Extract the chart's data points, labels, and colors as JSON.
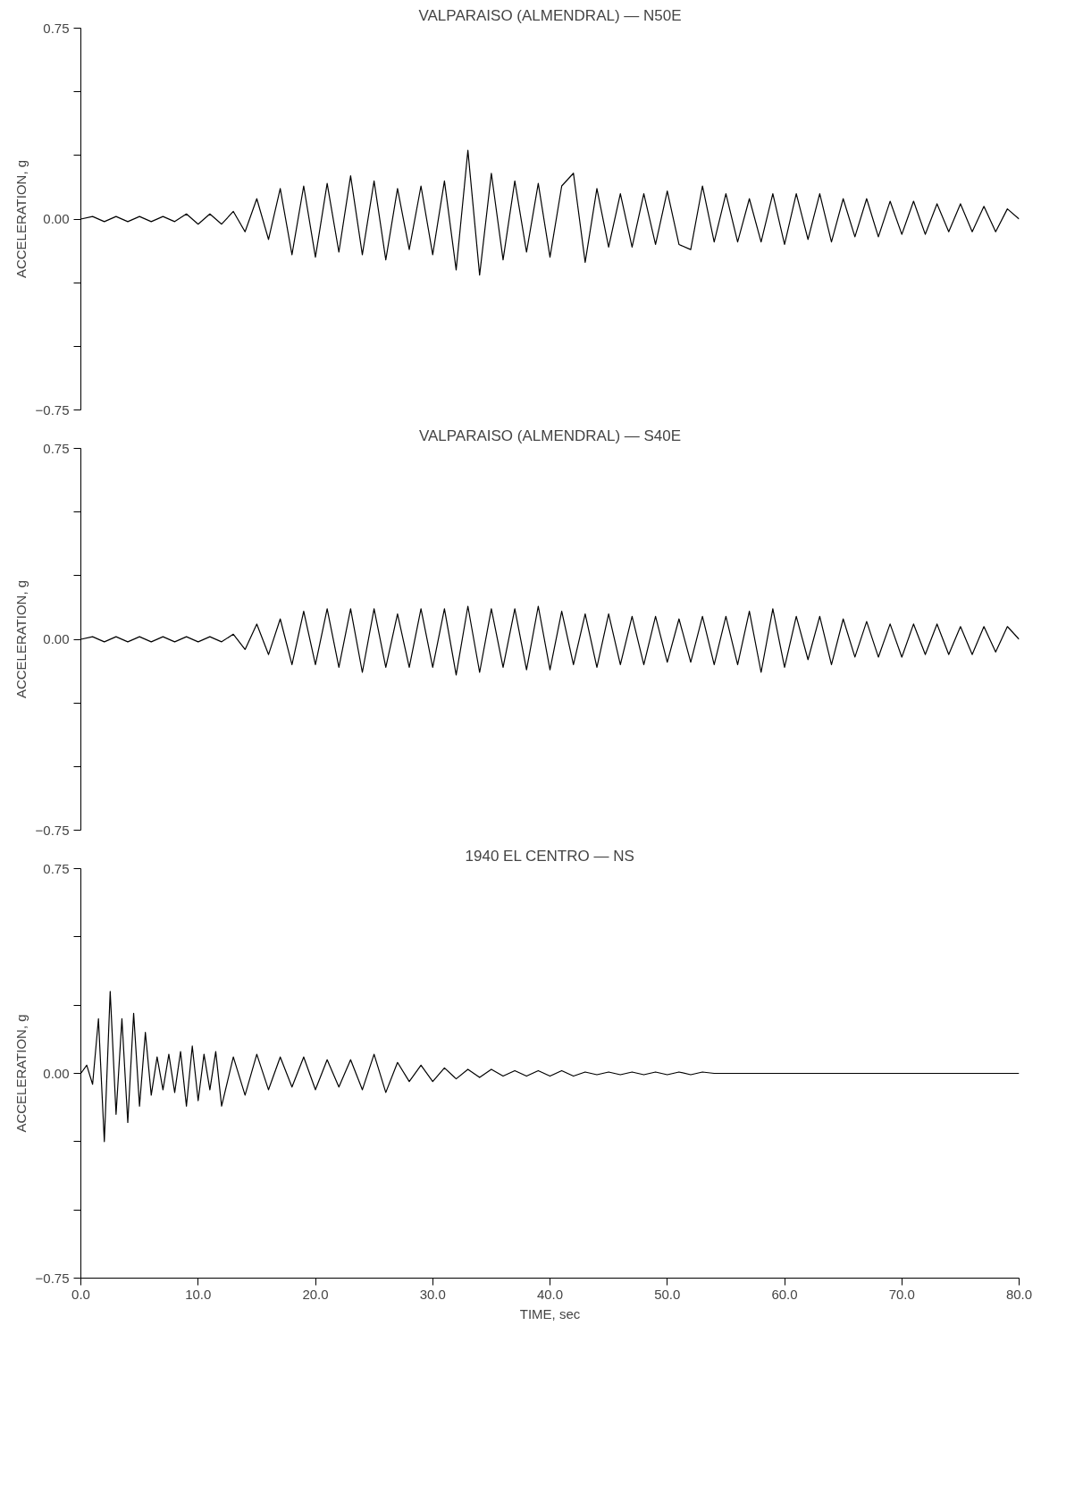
{
  "chart_data": [
    {
      "type": "line",
      "title": "VALPARAISO (ALMENDRAL) — N50E",
      "ylabel": "ACCELERATION, g",
      "tick_labels": "y",
      "grid": false,
      "xlim": [
        0,
        80
      ],
      "ylim": [
        -0.75,
        0.75
      ],
      "yticks": [
        {
          "value": 0.75,
          "label": "0.75"
        },
        {
          "value": 0.5,
          "label": null
        },
        {
          "value": 0.25,
          "label": null
        },
        {
          "value": 0,
          "label": "0.00"
        },
        {
          "value": -0.25,
          "label": null
        },
        {
          "value": -0.5,
          "label": null
        },
        {
          "value": -0.75,
          "label": "−0.75"
        }
      ],
      "x": [
        0,
        1,
        2,
        3,
        4,
        5,
        6,
        7,
        8,
        9,
        10,
        11,
        12,
        13,
        14,
        15,
        16,
        17,
        18,
        19,
        20,
        21,
        22,
        23,
        24,
        25,
        26,
        27,
        28,
        29,
        30,
        31,
        32,
        33,
        34,
        35,
        36,
        37,
        38,
        39,
        40,
        41,
        42,
        43,
        44,
        45,
        46,
        47,
        48,
        49,
        50,
        51,
        52,
        53,
        54,
        55,
        56,
        57,
        58,
        59,
        60,
        61,
        62,
        63,
        64,
        65,
        66,
        67,
        68,
        69,
        70,
        71,
        72,
        73,
        74,
        75,
        76,
        77,
        78,
        79,
        80
      ],
      "series": [
        {
          "color": "#000000",
          "values": [
            0,
            0.01,
            -0.01,
            0.01,
            -0.01,
            0.01,
            -0.01,
            0.01,
            -0.01,
            0.02,
            -0.02,
            0.02,
            -0.02,
            0.03,
            -0.05,
            0.08,
            -0.08,
            0.12,
            -0.14,
            0.13,
            -0.15,
            0.14,
            -0.13,
            0.17,
            -0.14,
            0.15,
            -0.16,
            0.12,
            -0.12,
            0.13,
            -0.14,
            0.15,
            -0.2,
            0.27,
            -0.22,
            0.18,
            -0.16,
            0.15,
            -0.13,
            0.14,
            -0.15,
            0.13,
            0.18,
            -0.17,
            0.12,
            -0.11,
            0.1,
            -0.11,
            0.1,
            -0.1,
            0.11,
            -0.1,
            -0.12,
            0.13,
            -0.09,
            0.1,
            -0.09,
            0.08,
            -0.09,
            0.1,
            -0.1,
            0.1,
            -0.08,
            0.1,
            -0.09,
            0.08,
            -0.07,
            0.08,
            -0.07,
            0.07,
            -0.06,
            0.07,
            -0.06,
            0.06,
            -0.05,
            0.06,
            -0.05,
            0.05,
            -0.05,
            0.04,
            0
          ]
        }
      ]
    },
    {
      "type": "line",
      "title": "VALPARAISO (ALMENDRAL) — S40E",
      "ylabel": "ACCELERATION, g",
      "tick_labels": "y",
      "grid": false,
      "xlim": [
        0,
        80
      ],
      "ylim": [
        -0.75,
        0.75
      ],
      "yticks": [
        {
          "value": 0.75,
          "label": "0.75"
        },
        {
          "value": 0.5,
          "label": null
        },
        {
          "value": 0.25,
          "label": null
        },
        {
          "value": 0,
          "label": "0.00"
        },
        {
          "value": -0.25,
          "label": null
        },
        {
          "value": -0.5,
          "label": null
        },
        {
          "value": -0.75,
          "label": "−0.75"
        }
      ],
      "x": [
        0,
        1,
        2,
        3,
        4,
        5,
        6,
        7,
        8,
        9,
        10,
        11,
        12,
        13,
        14,
        15,
        16,
        17,
        18,
        19,
        20,
        21,
        22,
        23,
        24,
        25,
        26,
        27,
        28,
        29,
        30,
        31,
        32,
        33,
        34,
        35,
        36,
        37,
        38,
        39,
        40,
        41,
        42,
        43,
        44,
        45,
        46,
        47,
        48,
        49,
        50,
        51,
        52,
        53,
        54,
        55,
        56,
        57,
        58,
        59,
        60,
        61,
        62,
        63,
        64,
        65,
        66,
        67,
        68,
        69,
        70,
        71,
        72,
        73,
        74,
        75,
        76,
        77,
        78,
        79,
        80
      ],
      "series": [
        {
          "color": "#000000",
          "values": [
            0,
            0.01,
            -0.01,
            0.01,
            -0.01,
            0.01,
            -0.01,
            0.01,
            -0.01,
            0.01,
            -0.01,
            0.01,
            -0.01,
            0.02,
            -0.04,
            0.06,
            -0.06,
            0.08,
            -0.1,
            0.11,
            -0.1,
            0.12,
            -0.11,
            0.12,
            -0.13,
            0.12,
            -0.11,
            0.1,
            -0.11,
            0.12,
            -0.11,
            0.12,
            -0.14,
            0.13,
            -0.13,
            0.12,
            -0.11,
            0.12,
            -0.12,
            0.13,
            -0.12,
            0.11,
            -0.1,
            0.1,
            -0.11,
            0.1,
            -0.1,
            0.09,
            -0.1,
            0.09,
            -0.09,
            0.08,
            -0.09,
            0.09,
            -0.1,
            0.09,
            -0.1,
            0.11,
            -0.13,
            0.12,
            -0.11,
            0.09,
            -0.08,
            0.09,
            -0.1,
            0.08,
            -0.07,
            0.07,
            -0.07,
            0.06,
            -0.07,
            0.06,
            -0.06,
            0.06,
            -0.06,
            0.05,
            -0.06,
            0.05,
            -0.05,
            0.05,
            0
          ]
        }
      ]
    },
    {
      "type": "line",
      "title": "1940 EL CENTRO — NS",
      "ylabel": "ACCELERATION, g",
      "xlabel": "TIME, sec",
      "grid": false,
      "xlim": [
        0,
        80
      ],
      "ylim": [
        -0.75,
        0.75
      ],
      "xticks": [
        {
          "value": 0,
          "label": "0.0"
        },
        {
          "value": 10,
          "label": "10.0"
        },
        {
          "value": 20,
          "label": "20.0"
        },
        {
          "value": 30,
          "label": "30.0"
        },
        {
          "value": 40,
          "label": "40.0"
        },
        {
          "value": 50,
          "label": "50.0"
        },
        {
          "value": 60,
          "label": "60.0"
        },
        {
          "value": 70,
          "label": "70.0"
        },
        {
          "value": 80,
          "label": "80.0"
        }
      ],
      "yticks": [
        {
          "value": 0.75,
          "label": "0.75"
        },
        {
          "value": 0.5,
          "label": null
        },
        {
          "value": 0.25,
          "label": null
        },
        {
          "value": 0,
          "label": "0.00"
        },
        {
          "value": -0.25,
          "label": null
        },
        {
          "value": -0.5,
          "label": null
        },
        {
          "value": -0.75,
          "label": "−0.75"
        }
      ],
      "x": [
        0,
        0.5,
        1,
        1.5,
        2,
        2.5,
        3,
        3.5,
        4,
        4.5,
        5,
        5.5,
        6,
        6.5,
        7,
        7.5,
        8,
        8.5,
        9,
        9.5,
        10,
        10.5,
        11,
        11.5,
        12,
        13,
        14,
        15,
        16,
        17,
        18,
        19,
        20,
        21,
        22,
        23,
        24,
        25,
        26,
        27,
        28,
        29,
        30,
        31,
        32,
        33,
        34,
        35,
        36,
        37,
        38,
        39,
        40,
        41,
        42,
        43,
        44,
        45,
        46,
        47,
        48,
        49,
        50,
        51,
        52,
        53,
        54,
        55,
        56,
        57,
        58,
        59,
        60,
        61,
        62,
        63,
        64,
        65,
        66,
        67,
        68,
        69,
        70,
        71,
        72,
        73,
        74,
        75,
        76,
        77,
        78,
        79,
        80
      ],
      "series": [
        {
          "color": "#000000",
          "values": [
            0,
            0.03,
            -0.04,
            0.2,
            -0.25,
            0.3,
            -0.15,
            0.2,
            -0.18,
            0.22,
            -0.12,
            0.15,
            -0.08,
            0.06,
            -0.06,
            0.07,
            -0.07,
            0.08,
            -0.12,
            0.1,
            -0.1,
            0.07,
            -0.06,
            0.08,
            -0.12,
            0.06,
            -0.08,
            0.07,
            -0.06,
            0.06,
            -0.05,
            0.06,
            -0.06,
            0.05,
            -0.05,
            0.05,
            -0.06,
            0.07,
            -0.07,
            0.04,
            -0.03,
            0.03,
            -0.03,
            0.02,
            -0.02,
            0.015,
            -0.015,
            0.015,
            -0.01,
            0.01,
            -0.01,
            0.01,
            -0.01,
            0.01,
            -0.01,
            0.005,
            -0.005,
            0.005,
            -0.005,
            0.005,
            -0.005,
            0.005,
            -0.005,
            0.005,
            -0.005,
            0.005,
            0,
            0,
            0,
            0,
            0,
            0,
            0,
            0,
            0,
            0,
            0,
            0,
            0,
            0,
            0,
            0,
            0,
            0,
            0,
            0,
            0,
            0,
            0,
            0,
            0,
            0,
            0
          ]
        }
      ]
    }
  ]
}
